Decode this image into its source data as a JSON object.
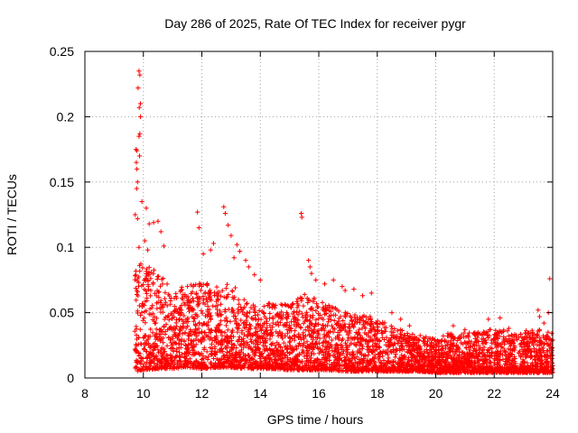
{
  "chart_data": {
    "type": "scatter",
    "title": "Day 286 of 2025, Rate Of TEC Index for receiver pygr",
    "xlabel": "GPS time / hours",
    "ylabel": "ROTI / TECUs",
    "xlim": [
      8,
      24
    ],
    "ylim": [
      0,
      0.25
    ],
    "x_ticks": [
      8,
      10,
      12,
      14,
      16,
      18,
      20,
      22,
      24
    ],
    "x_tick_labels": [
      "8",
      "10",
      "12",
      "14",
      "16",
      "18",
      "20",
      "22",
      "24"
    ],
    "y_ticks": [
      0,
      0.05,
      0.1,
      0.15,
      0.2,
      0.25
    ],
    "y_tick_labels": [
      "0",
      "0.05",
      "0.1",
      "0.15",
      "0.2",
      "0.25"
    ],
    "grid": true,
    "marker": "+",
    "color": "#ff0000",
    "series": [
      {
        "name": "ROTI",
        "points": [
          [
            9.85,
            0.235
          ],
          [
            9.88,
            0.232
          ],
          [
            9.82,
            0.222
          ],
          [
            9.9,
            0.21
          ],
          [
            9.86,
            0.207
          ],
          [
            9.9,
            0.2
          ],
          [
            9.88,
            0.187
          ],
          [
            9.85,
            0.185
          ],
          [
            9.75,
            0.175
          ],
          [
            9.78,
            0.174
          ],
          [
            9.87,
            0.17
          ],
          [
            9.76,
            0.165
          ],
          [
            9.78,
            0.16
          ],
          [
            9.8,
            0.15
          ],
          [
            9.77,
            0.145
          ],
          [
            10.1,
            0.13
          ],
          [
            9.95,
            0.135
          ],
          [
            9.72,
            0.125
          ],
          [
            9.8,
            0.122
          ],
          [
            10.5,
            0.12
          ],
          [
            10.2,
            0.118
          ],
          [
            10.35,
            0.119
          ],
          [
            10.6,
            0.112
          ],
          [
            10.7,
            0.101
          ],
          [
            10.05,
            0.105
          ],
          [
            9.85,
            0.1
          ],
          [
            10.15,
            0.098
          ],
          [
            11.85,
            0.127
          ],
          [
            11.9,
            0.115
          ],
          [
            12.05,
            0.095
          ],
          [
            12.3,
            0.098
          ],
          [
            12.4,
            0.103
          ],
          [
            12.75,
            0.131
          ],
          [
            12.8,
            0.126
          ],
          [
            12.9,
            0.117
          ],
          [
            13.0,
            0.109
          ],
          [
            13.2,
            0.102
          ],
          [
            13.3,
            0.097
          ],
          [
            13.1,
            0.092
          ],
          [
            13.5,
            0.09
          ],
          [
            13.6,
            0.085
          ],
          [
            13.8,
            0.079
          ],
          [
            14.0,
            0.075
          ],
          [
            15.4,
            0.126
          ],
          [
            15.42,
            0.123
          ],
          [
            15.65,
            0.09
          ],
          [
            15.7,
            0.085
          ],
          [
            15.75,
            0.08
          ],
          [
            15.9,
            0.075
          ],
          [
            16.2,
            0.072
          ],
          [
            16.5,
            0.075
          ],
          [
            16.8,
            0.07
          ],
          [
            16.9,
            0.067
          ],
          [
            17.2,
            0.068
          ],
          [
            17.5,
            0.063
          ],
          [
            17.8,
            0.065
          ],
          [
            18.5,
            0.05
          ],
          [
            18.8,
            0.045
          ],
          [
            19.1,
            0.04
          ],
          [
            20.6,
            0.04
          ],
          [
            21.0,
            0.037
          ],
          [
            21.8,
            0.045
          ],
          [
            22.2,
            0.046
          ],
          [
            22.5,
            0.038
          ],
          [
            23.5,
            0.052
          ],
          [
            23.55,
            0.047
          ],
          [
            23.9,
            0.076
          ],
          [
            23.85,
            0.05
          ],
          [
            23.7,
            0.042
          ]
        ]
      }
    ],
    "density_envelope": {
      "x": [
        9.7,
        10.0,
        10.5,
        11.0,
        11.5,
        12.0,
        12.5,
        13.0,
        13.5,
        14.0,
        14.5,
        15.0,
        15.5,
        16.0,
        16.5,
        17.0,
        17.5,
        18.0,
        18.5,
        19.0,
        19.5,
        20.0,
        20.5,
        21.0,
        21.5,
        22.0,
        22.5,
        23.0,
        23.5,
        24.0
      ],
      "low": [
        0.005,
        0.006,
        0.007,
        0.007,
        0.008,
        0.007,
        0.008,
        0.008,
        0.007,
        0.007,
        0.007,
        0.006,
        0.006,
        0.006,
        0.006,
        0.005,
        0.005,
        0.005,
        0.005,
        0.005,
        0.005,
        0.004,
        0.004,
        0.004,
        0.004,
        0.004,
        0.004,
        0.004,
        0.004,
        0.004
      ],
      "high": [
        0.085,
        0.09,
        0.08,
        0.07,
        0.07,
        0.075,
        0.07,
        0.075,
        0.06,
        0.055,
        0.06,
        0.055,
        0.065,
        0.06,
        0.055,
        0.05,
        0.05,
        0.045,
        0.04,
        0.035,
        0.033,
        0.03,
        0.035,
        0.035,
        0.035,
        0.038,
        0.036,
        0.036,
        0.038,
        0.035
      ]
    }
  }
}
